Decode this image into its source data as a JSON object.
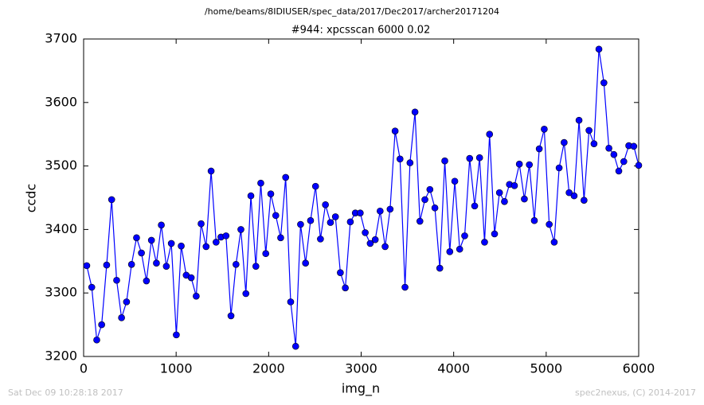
{
  "chart_data": {
    "type": "line",
    "suptitle": "/home/beams/8IDIUSER/spec_data/2017/Dec2017/archer20171204",
    "title": "#944: xpcsscan 6000 0.02",
    "xlabel": "img_n",
    "ylabel": "ccdc",
    "footer_left": "Sat Dec 09 10:28:18 2017",
    "footer_right": "spec2nexus, (C) 2014-2017",
    "x": [
      34,
      88,
      142,
      195,
      249,
      303,
      357,
      410,
      464,
      518,
      572,
      625,
      679,
      733,
      787,
      840,
      894,
      948,
      1002,
      1055,
      1109,
      1163,
      1217,
      1270,
      1324,
      1378,
      1432,
      1485,
      1539,
      1593,
      1647,
      1700,
      1754,
      1808,
      1862,
      1915,
      1969,
      2023,
      2077,
      2130,
      2184,
      2238,
      2292,
      2345,
      2399,
      2453,
      2507,
      2560,
      2614,
      2668,
      2722,
      2775,
      2829,
      2883,
      2937,
      2990,
      3044,
      3098,
      3152,
      3205,
      3259,
      3313,
      3367,
      3420,
      3474,
      3528,
      3582,
      3635,
      3689,
      3743,
      3797,
      3850,
      3904,
      3958,
      4012,
      4065,
      4119,
      4173,
      4227,
      4280,
      4334,
      4388,
      4442,
      4495,
      4549,
      4603,
      4657,
      4710,
      4764,
      4818,
      4872,
      4925,
      4979,
      5033,
      5087,
      5140,
      5194,
      5248,
      5302,
      5355,
      5409,
      5463,
      5517,
      5570,
      5624,
      5678,
      5732,
      5785,
      5839,
      5893,
      5947,
      6000
    ],
    "series": [
      {
        "name": "ccdc",
        "color": "#0000ff",
        "values": [
          3343,
          3309,
          3226,
          3250,
          3344,
          3447,
          3320,
          3261,
          3286,
          3345,
          3387,
          3363,
          3319,
          3383,
          3347,
          3407,
          3342,
          3378,
          3234,
          3374,
          3328,
          3324,
          3295,
          3409,
          3373,
          3492,
          3380,
          3388,
          3390,
          3264,
          3345,
          3400,
          3299,
          3453,
          3342,
          3473,
          3362,
          3456,
          3422,
          3387,
          3482,
          3286,
          3216,
          3408,
          3347,
          3414,
          3468,
          3385,
          3439,
          3411,
          3420,
          3332,
          3308,
          3412,
          3426,
          3426,
          3395,
          3378,
          3384,
          3429,
          3373,
          3432,
          3555,
          3511,
          3309,
          3505,
          3585,
          3413,
          3447,
          3463,
          3434,
          3339,
          3508,
          3365,
          3476,
          3369,
          3390,
          3512,
          3437,
          3513,
          3380,
          3550,
          3393,
          3458,
          3444,
          3471,
          3469,
          3503,
          3448,
          3502,
          3414,
          3527,
          3558,
          3408,
          3380,
          3497,
          3537,
          3458,
          3453,
          3572,
          3446,
          3556,
          3535,
          3684,
          3631,
          3528,
          3518,
          3492,
          3507,
          3532,
          3531,
          3501
        ]
      }
    ],
    "xlim": [
      0,
      6000
    ],
    "xticks": [
      0,
      1000,
      2000,
      3000,
      4000,
      5000,
      6000
    ],
    "ylim": [
      3200,
      3700
    ],
    "yticks": [
      3200,
      3300,
      3400,
      3500,
      3600,
      3700
    ]
  }
}
